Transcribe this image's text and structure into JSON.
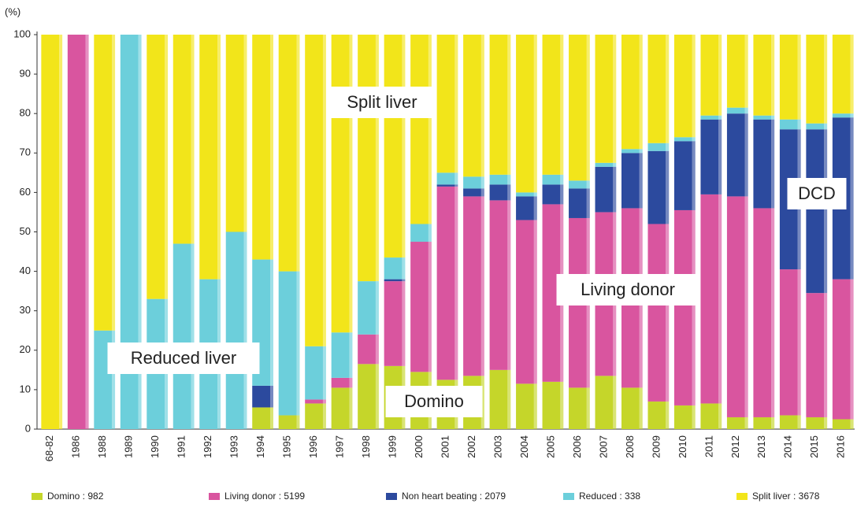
{
  "chart_data": {
    "type": "stacked_bar",
    "y_label": "(%)",
    "categories": [
      "68-82",
      "1986",
      "1988",
      "1989",
      "1990",
      "1991",
      "1992",
      "1993",
      "1994",
      "1995",
      "1996",
      "1997",
      "1998",
      "1999",
      "2000",
      "2001",
      "2002",
      "2003",
      "2004",
      "2005",
      "2006",
      "2007",
      "2008",
      "2009",
      "2010",
      "2011",
      "2012",
      "2013",
      "2014",
      "2015",
      "2016"
    ],
    "series": [
      {
        "name": "Domino : 982",
        "color": "#c5d62a",
        "values": [
          0,
          0,
          0,
          0,
          0,
          0,
          0,
          0,
          5.5,
          3.5,
          6.5,
          10.5,
          16.5,
          16,
          14.5,
          12.5,
          13.5,
          15,
          11.5,
          12,
          10.5,
          13.5,
          10.5,
          7,
          6,
          6.5,
          3,
          3,
          3.5,
          3,
          2.5
        ]
      },
      {
        "name": "Living donor : 5199",
        "color": "#d9559f",
        "values": [
          0,
          100,
          0,
          0,
          0,
          0,
          0,
          0,
          0,
          0,
          1,
          2.5,
          7.5,
          21.5,
          33,
          49,
          45.5,
          43,
          41.5,
          45,
          43,
          41.5,
          45.5,
          45,
          49.5,
          53,
          56,
          53,
          37,
          31.5,
          35.5
        ]
      },
      {
        "name": "Non heart beating : 2079",
        "color": "#2c4a9e",
        "values": [
          0,
          0,
          0,
          0,
          0,
          0,
          0,
          0,
          5.5,
          0,
          0,
          0,
          0,
          0.5,
          0,
          0.5,
          2,
          4,
          6,
          5,
          7.5,
          11.5,
          14,
          18.5,
          17.5,
          19,
          21,
          22.5,
          35.5,
          41.5,
          41
        ]
      },
      {
        "name": "Reduced : 338",
        "color": "#6ccfdb",
        "values": [
          0,
          0,
          25,
          100,
          33,
          47,
          38,
          50,
          32,
          36.5,
          13.5,
          11.5,
          13.5,
          5.5,
          4.5,
          3,
          3,
          2.5,
          1,
          2.5,
          2,
          1,
          1,
          2,
          1,
          1,
          1.5,
          1,
          2.5,
          1.5,
          1
        ]
      },
      {
        "name": "Split liver : 3678",
        "color": "#f2e51a",
        "values": [
          100,
          0,
          75,
          0,
          67,
          53,
          62,
          50,
          57,
          60,
          79,
          75.5,
          62.5,
          56.5,
          48,
          35,
          36,
          35.5,
          40,
          35.5,
          37,
          32.5,
          29,
          27.5,
          26,
          20.5,
          18.5,
          20.5,
          21.5,
          22.5,
          20
        ]
      }
    ],
    "ylim": [
      0,
      100
    ],
    "yticks": [
      0,
      10,
      20,
      30,
      40,
      50,
      60,
      70,
      80,
      90,
      100
    ],
    "grid": false,
    "annotations": [
      "Split liver",
      "Reduced liver",
      "Domino",
      "Living donor",
      "DCD"
    ]
  }
}
